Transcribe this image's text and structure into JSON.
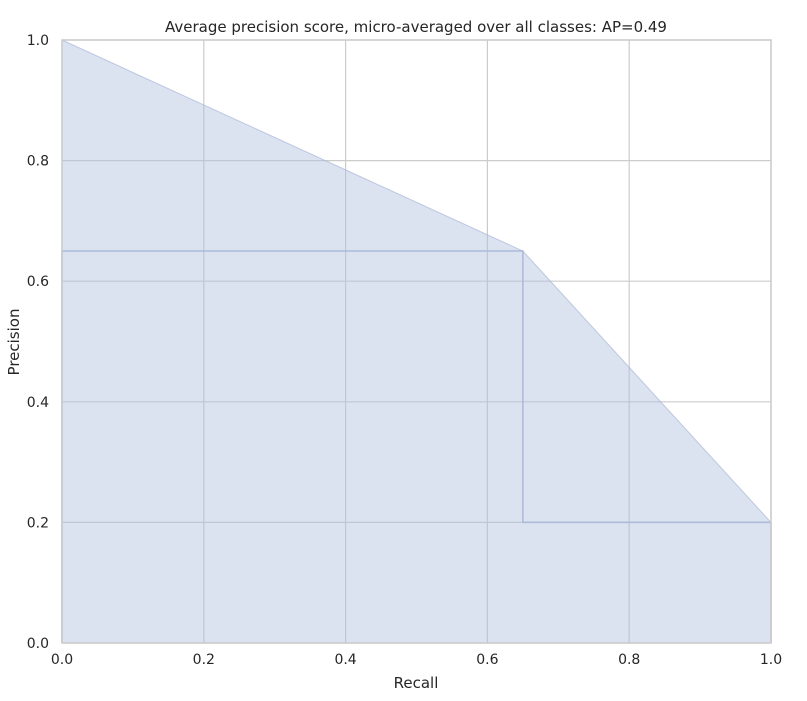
{
  "chart_data": {
    "type": "area",
    "title": "Average precision score, micro-averaged over all classes: AP=0.49",
    "xlabel": "Recall",
    "ylabel": "Precision",
    "xlim": [
      0,
      1
    ],
    "ylim": [
      0,
      1
    ],
    "x_ticks": [
      0.0,
      0.2,
      0.4,
      0.6,
      0.8,
      1.0
    ],
    "y_ticks": [
      0.0,
      0.2,
      0.4,
      0.6,
      0.8,
      1.0
    ],
    "x_tick_labels": [
      "0.0",
      "0.2",
      "0.4",
      "0.6",
      "0.8",
      "1.0"
    ],
    "y_tick_labels": [
      "0.0",
      "0.2",
      "0.4",
      "0.6",
      "0.8",
      "1.0"
    ],
    "grid": true,
    "series": [
      {
        "kind": "step",
        "recall": [
          0.0,
          0.0,
          0.65,
          0.65,
          1.0,
          1.0
        ],
        "precision": [
          0.0,
          0.65,
          0.65,
          0.2,
          0.2,
          0.0
        ]
      },
      {
        "kind": "fill",
        "recall": [
          0.0,
          0.65,
          1.0
        ],
        "precision": [
          1.0,
          0.65,
          0.2
        ]
      }
    ],
    "colors": {
      "fill": "#b0bedd",
      "fill_opacity": 0.45,
      "step_line": "#a8b6d8",
      "grid": "#cccccc",
      "axes_edge": "#cccccc",
      "background": "#ffffff"
    }
  }
}
